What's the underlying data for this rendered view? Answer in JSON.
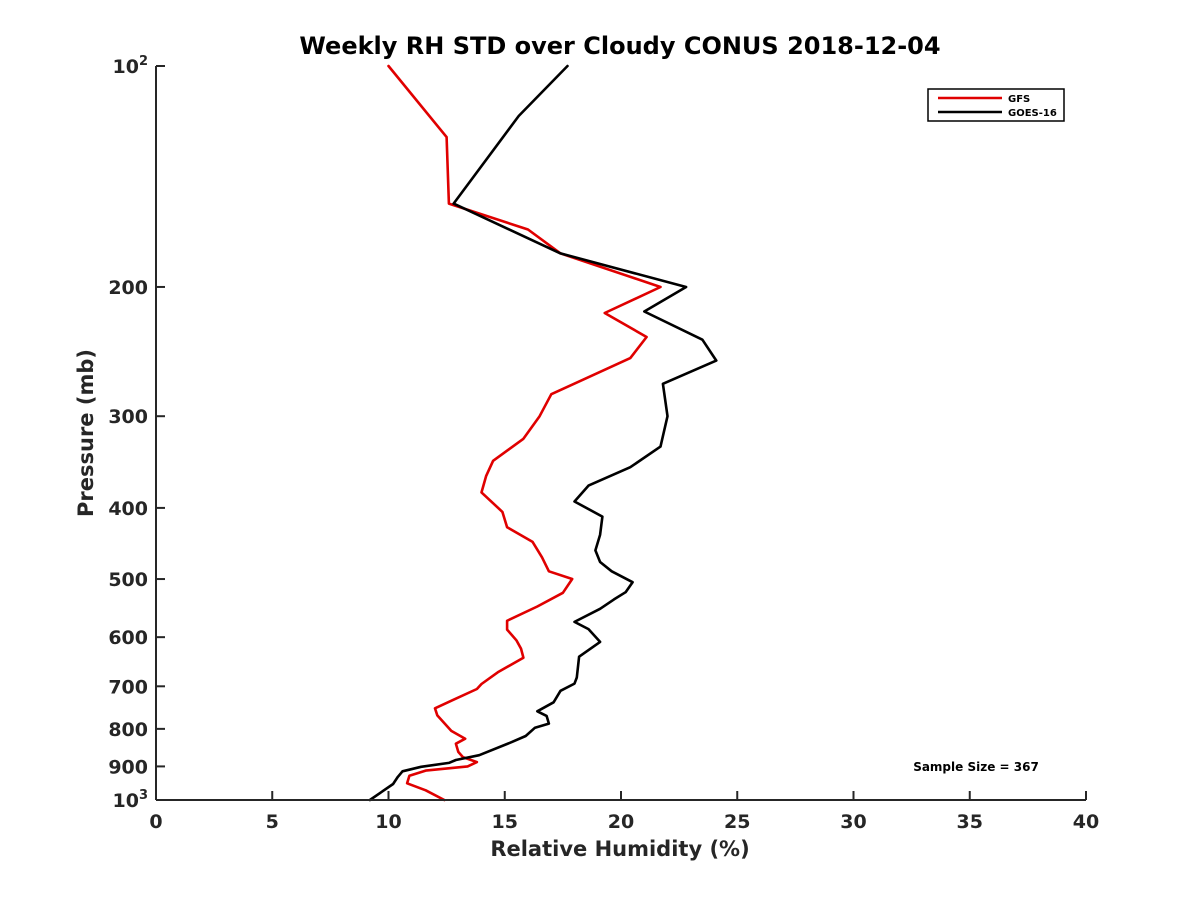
{
  "chart_data": {
    "type": "line",
    "title": "Weekly RH STD over Cloudy CONUS 2018-12-04",
    "xlabel": "Relative Humidity (%)",
    "ylabel": "Pressure (mb)",
    "xlim": [
      0,
      40
    ],
    "ylim": [
      100,
      1000
    ],
    "y_scale": "log",
    "y_reversed": true,
    "x_ticks": [
      {
        "value": 0,
        "label": "0"
      },
      {
        "value": 5,
        "label": "5"
      },
      {
        "value": 10,
        "label": "10"
      },
      {
        "value": 15,
        "label": "15"
      },
      {
        "value": 20,
        "label": "20"
      },
      {
        "value": 25,
        "label": "25"
      },
      {
        "value": 30,
        "label": "30"
      },
      {
        "value": 35,
        "label": "35"
      },
      {
        "value": 40,
        "label": "40"
      }
    ],
    "y_ticks": [
      {
        "value": 100,
        "label": "10",
        "sup": "2"
      },
      {
        "value": 200,
        "label": "200"
      },
      {
        "value": 300,
        "label": "300"
      },
      {
        "value": 400,
        "label": "400"
      },
      {
        "value": 500,
        "label": "500"
      },
      {
        "value": 600,
        "label": "600"
      },
      {
        "value": 700,
        "label": "700"
      },
      {
        "value": 800,
        "label": "800"
      },
      {
        "value": 900,
        "label": "900"
      },
      {
        "value": 1000,
        "label": "10",
        "sup": "3"
      }
    ],
    "legend_position": "top-right",
    "annotation": "Sample Size = 367",
    "series": [
      {
        "name": "GFS",
        "color": "#e00000",
        "points": [
          [
            10.0,
            100
          ],
          [
            12.5,
            125
          ],
          [
            12.6,
            154
          ],
          [
            16.0,
            167
          ],
          [
            17.4,
            180
          ],
          [
            21.7,
            200
          ],
          [
            19.3,
            217
          ],
          [
            21.1,
            234
          ],
          [
            20.4,
            250
          ],
          [
            17.0,
            280
          ],
          [
            16.5,
            300
          ],
          [
            15.8,
            322
          ],
          [
            14.5,
            345
          ],
          [
            14.2,
            362
          ],
          [
            14.0,
            381
          ],
          [
            14.9,
            405
          ],
          [
            15.1,
            425
          ],
          [
            16.2,
            445
          ],
          [
            16.6,
            467
          ],
          [
            16.9,
            488
          ],
          [
            17.9,
            500
          ],
          [
            17.5,
            522
          ],
          [
            16.4,
            545
          ],
          [
            15.1,
            570
          ],
          [
            15.1,
            586
          ],
          [
            15.5,
            606
          ],
          [
            15.7,
            622
          ],
          [
            15.8,
            640
          ],
          [
            14.7,
            670
          ],
          [
            14.0,
            695
          ],
          [
            13.8,
            706
          ],
          [
            12.8,
            730
          ],
          [
            12.0,
            750
          ],
          [
            12.1,
            767
          ],
          [
            12.7,
            805
          ],
          [
            13.3,
            825
          ],
          [
            12.9,
            838
          ],
          [
            13.0,
            860
          ],
          [
            13.2,
            874
          ],
          [
            13.8,
            888
          ],
          [
            13.4,
            900
          ],
          [
            11.6,
            912
          ],
          [
            10.9,
            927
          ],
          [
            10.8,
            949
          ],
          [
            11.6,
            970
          ],
          [
            12.4,
            1000
          ]
        ]
      },
      {
        "name": "GOES-16",
        "color": "#000000",
        "points": [
          [
            17.7,
            100
          ],
          [
            15.6,
            117
          ],
          [
            12.8,
            154
          ],
          [
            17.4,
            180
          ],
          [
            22.8,
            200
          ],
          [
            21.0,
            216
          ],
          [
            23.5,
            236
          ],
          [
            24.1,
            252
          ],
          [
            21.8,
            271
          ],
          [
            22.0,
            300
          ],
          [
            21.7,
            330
          ],
          [
            20.4,
            352
          ],
          [
            18.6,
            373
          ],
          [
            18.0,
            392
          ],
          [
            19.2,
            411
          ],
          [
            19.1,
            435
          ],
          [
            18.9,
            457
          ],
          [
            19.1,
            474
          ],
          [
            19.6,
            488
          ],
          [
            20.5,
            505
          ],
          [
            20.2,
            521
          ],
          [
            19.7,
            533
          ],
          [
            19.1,
            549
          ],
          [
            18.0,
            572
          ],
          [
            18.6,
            585
          ],
          [
            19.1,
            609
          ],
          [
            18.2,
            638
          ],
          [
            18.1,
            681
          ],
          [
            18.0,
            694
          ],
          [
            17.4,
            710
          ],
          [
            17.1,
            736
          ],
          [
            16.4,
            757
          ],
          [
            16.8,
            768
          ],
          [
            16.9,
            787
          ],
          [
            16.3,
            797
          ],
          [
            15.9,
            818
          ],
          [
            15.3,
            834
          ],
          [
            13.9,
            869
          ],
          [
            12.9,
            882
          ],
          [
            12.6,
            890
          ],
          [
            11.4,
            901
          ],
          [
            10.6,
            914
          ],
          [
            10.4,
            930
          ],
          [
            10.2,
            951
          ],
          [
            9.2,
            1000
          ]
        ]
      }
    ]
  }
}
